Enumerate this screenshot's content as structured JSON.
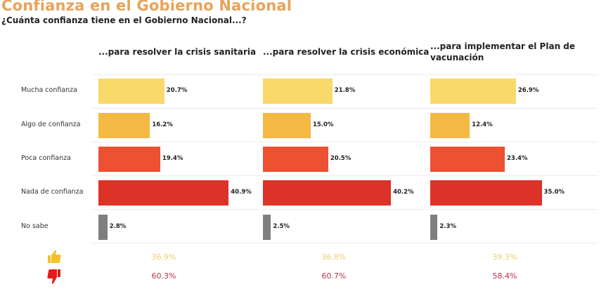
{
  "title": "Confianza en el Gobierno Nacional",
  "subtitle": "¿Cuánta confianza tiene en el Gobierno Nacional...?",
  "colors": {
    "title": "#e8a35a",
    "mucha": "#f8d96a",
    "algo": "#f4b942",
    "poca": "#ec5132",
    "nada": "#dc3228",
    "no_sabe": "#7f7f7f",
    "positive_text": "#e9cf6b",
    "negative_text": "#c0304a",
    "thumbs_up": "#f5c02a",
    "thumbs_down": "#e21b1b"
  },
  "chart_data": {
    "type": "bar",
    "orientation": "horizontal",
    "title": "Confianza en el Gobierno Nacional",
    "subtitle": "¿Cuánta confianza tiene en el Gobierno Nacional...?",
    "categories": [
      "Mucha confianza",
      "Algo de confianza",
      "Poca confianza",
      "Nada de confianza",
      "No sabe"
    ],
    "unit": "%",
    "panels": [
      {
        "name": "...para resolver la crisis sanitaria",
        "values": [
          20.7,
          16.2,
          19.4,
          40.9,
          2.8
        ],
        "labels": [
          "20.7%",
          "16.2%",
          "19.4%",
          "40.9%",
          "2.8%"
        ],
        "positive": "36.9%",
        "negative": "60.3%"
      },
      {
        "name": "...para resolver la crisis económica",
        "values": [
          21.8,
          15.0,
          20.5,
          40.2,
          2.5
        ],
        "labels": [
          "21.8%",
          "15.0%",
          "20.5%",
          "40.2%",
          "2.5%"
        ],
        "positive": "36.8%",
        "negative": "60.7%"
      },
      {
        "name": "...para implementar el Plan de vacunación",
        "name_lines": [
          "...para implementar el Plan de",
          "vacunación"
        ],
        "values": [
          26.9,
          12.4,
          23.4,
          35.0,
          2.3
        ],
        "labels": [
          "26.9%",
          "12.4%",
          "23.4%",
          "35.0%",
          "2.3%"
        ],
        "positive": "39.3%",
        "negative": "58.4%"
      }
    ],
    "summary_rows": [
      {
        "icon": "thumbs-up-icon",
        "meaning": "Mucha + Algo de confianza"
      },
      {
        "icon": "thumbs-down-icon",
        "meaning": "Poca + Nada de confianza"
      }
    ],
    "xlim": [
      0,
      45
    ],
    "grid": false,
    "legend": "none"
  }
}
